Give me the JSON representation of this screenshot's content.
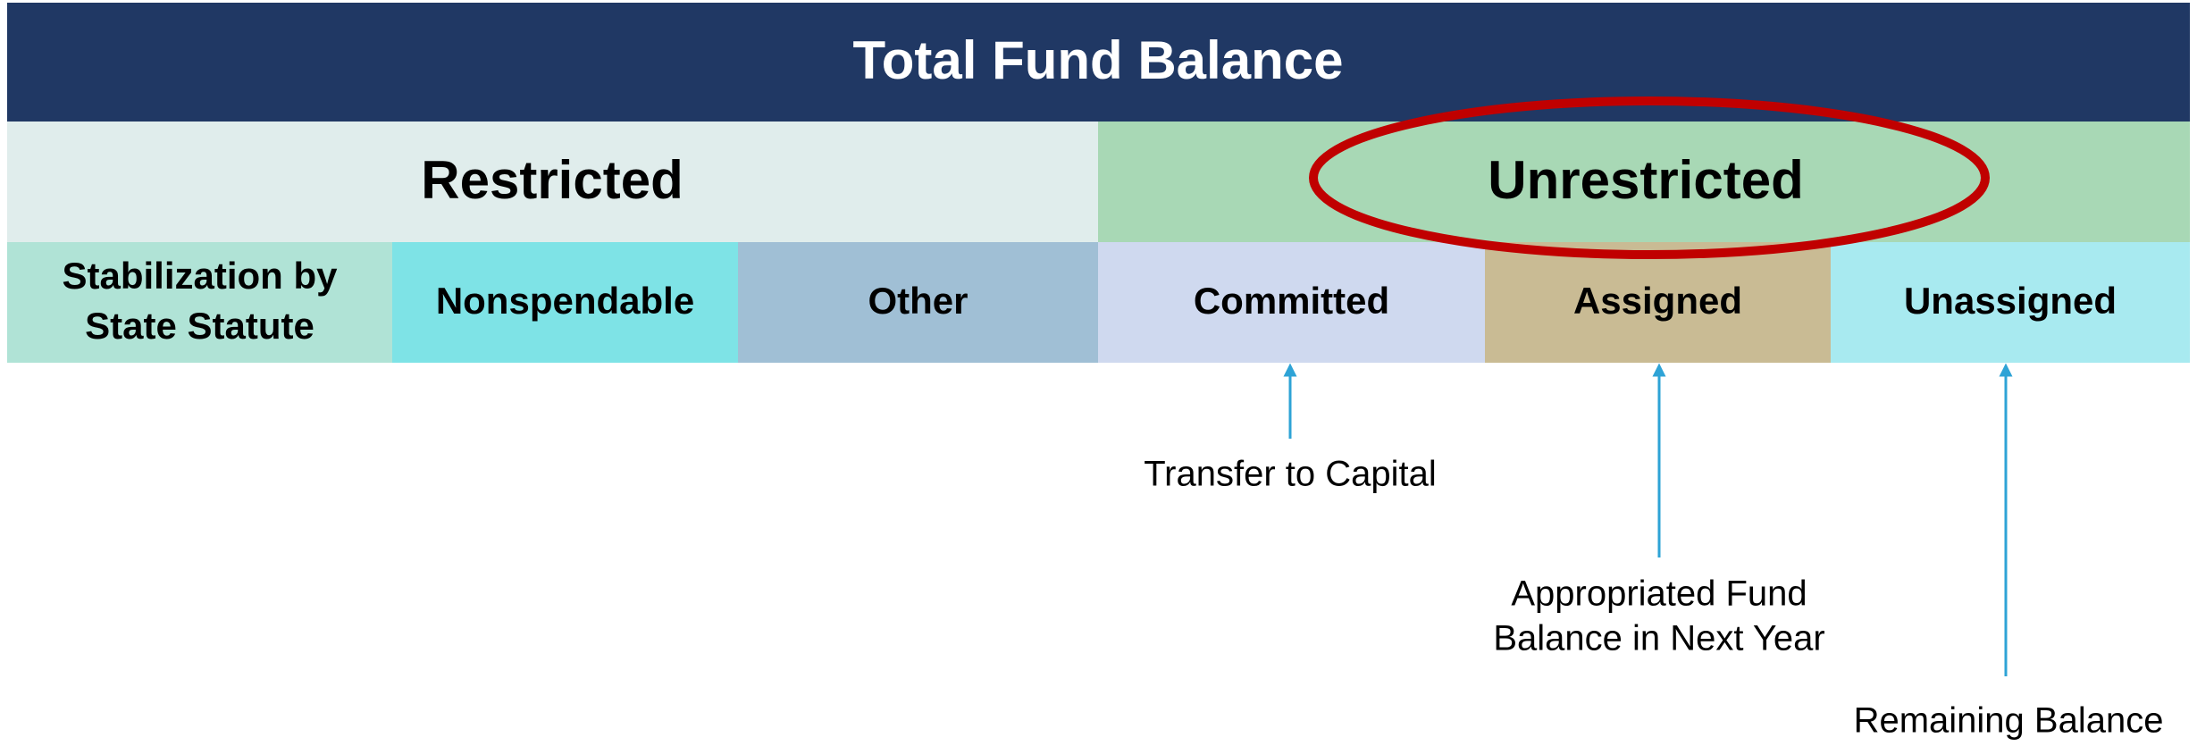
{
  "header": {
    "title": "Total Fund Balance"
  },
  "sections": [
    {
      "label": "Restricted"
    },
    {
      "label": "Unrestricted"
    }
  ],
  "cells": [
    {
      "lines": [
        "Stabilization by",
        "State Statute"
      ]
    },
    {
      "lines": [
        "Nonspendable"
      ]
    },
    {
      "lines": [
        "Other"
      ]
    },
    {
      "lines": [
        "Committed"
      ]
    },
    {
      "lines": [
        "Assigned"
      ]
    },
    {
      "lines": [
        "Unassigned"
      ]
    }
  ],
  "annotations": [
    {
      "lines": [
        "Transfer to Capital"
      ]
    },
    {
      "lines": [
        "Appropriated Fund",
        "Balance in Next Year"
      ]
    },
    {
      "lines": [
        "Remaining Balance"
      ]
    }
  ]
}
